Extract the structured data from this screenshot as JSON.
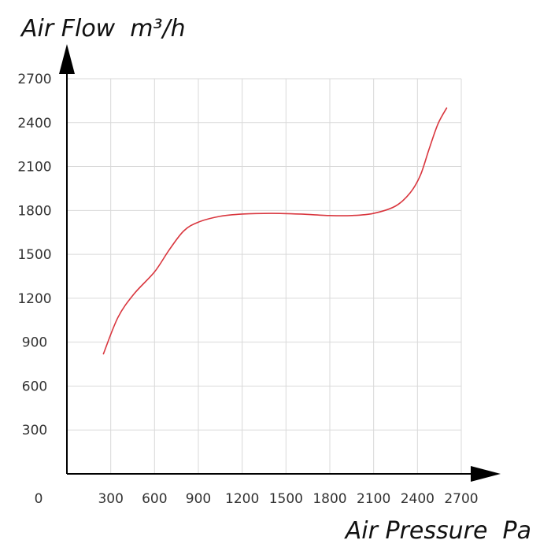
{
  "chart_data": {
    "type": "line",
    "title": "",
    "xlabel": "Air Pressure  Pa",
    "ylabel": "Air Flow  m³/h",
    "origin_label": "0",
    "xlim": [
      0,
      2700
    ],
    "ylim": [
      0,
      2700
    ],
    "x_ticks": [
      300,
      600,
      900,
      1200,
      1500,
      1800,
      2100,
      2400,
      2700
    ],
    "y_ticks": [
      300,
      600,
      900,
      1200,
      1500,
      1800,
      2100,
      2400,
      2700
    ],
    "grid": true,
    "legend": "none",
    "series": [
      {
        "color": "#d9363e",
        "points": [
          [
            250,
            820
          ],
          [
            350,
            1070
          ],
          [
            460,
            1230
          ],
          [
            600,
            1380
          ],
          [
            700,
            1530
          ],
          [
            800,
            1660
          ],
          [
            900,
            1720
          ],
          [
            1050,
            1760
          ],
          [
            1200,
            1775
          ],
          [
            1400,
            1780
          ],
          [
            1600,
            1775
          ],
          [
            1800,
            1765
          ],
          [
            1950,
            1765
          ],
          [
            2100,
            1780
          ],
          [
            2250,
            1830
          ],
          [
            2350,
            1920
          ],
          [
            2420,
            2040
          ],
          [
            2480,
            2220
          ],
          [
            2540,
            2390
          ],
          [
            2600,
            2500
          ]
        ]
      }
    ],
    "axis_color": "#000000",
    "grid_color": "#d9d9d9"
  }
}
